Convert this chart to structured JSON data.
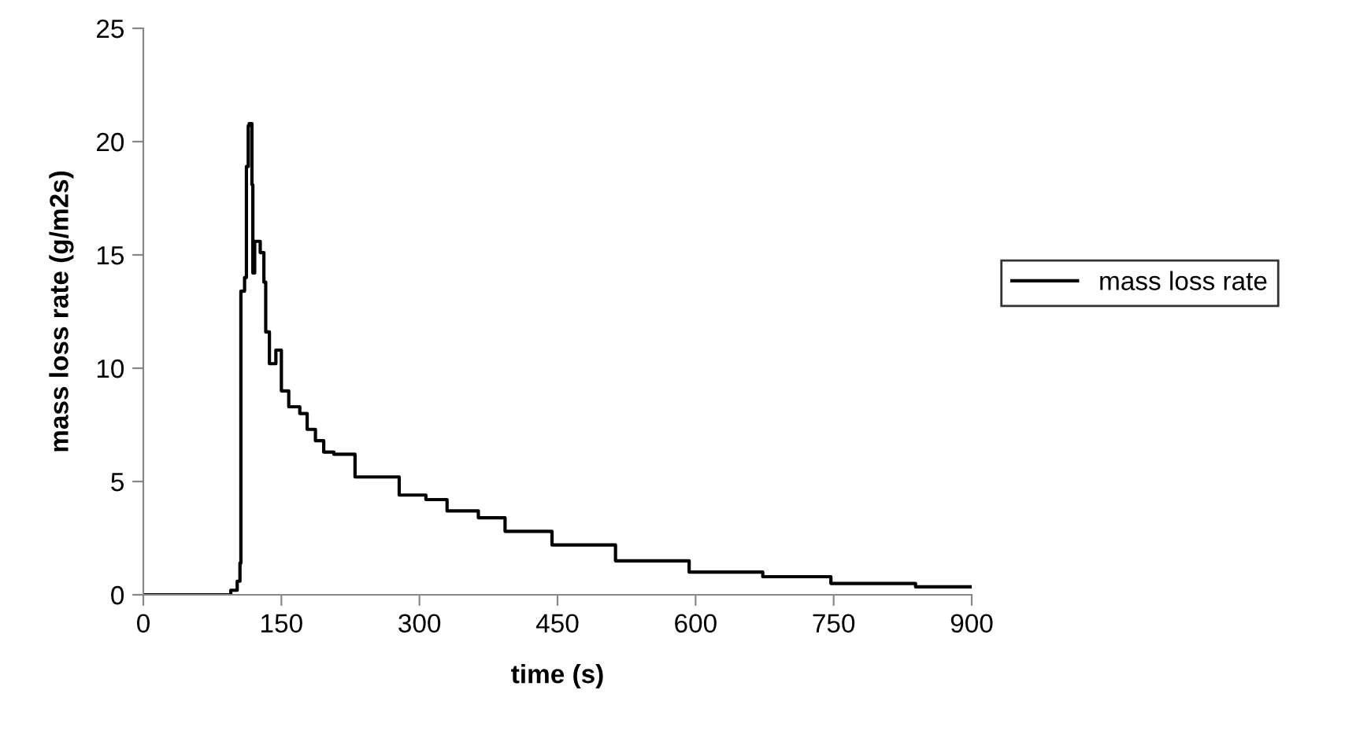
{
  "chart_data": {
    "type": "step",
    "xlabel": "time (s)",
    "ylabel": "mass loss rate (g/m2s)",
    "xlim": [
      0,
      900
    ],
    "xticks": [
      0,
      150,
      300,
      450,
      600,
      750,
      900
    ],
    "ylim": [
      0,
      25
    ],
    "yticks": [
      0,
      5,
      10,
      15,
      20,
      25
    ],
    "grid": false,
    "legend": "right",
    "marker": "none",
    "line_style": "solid",
    "series": [
      {
        "name": "mass loss rate",
        "color": "#000000",
        "x": [
          0,
          81,
          95,
          102,
          105,
          106,
          110,
          112,
          114,
          115,
          118,
          119,
          121,
          127,
          131,
          133,
          137,
          144,
          150,
          158,
          170,
          178,
          187,
          196,
          207,
          230,
          247,
          278,
          307,
          330,
          364,
          393,
          444,
          513,
          593,
          673,
          747,
          839,
          900
        ],
        "values": [
          0,
          0,
          0.2,
          0.6,
          1.4,
          13.4,
          14.0,
          18.9,
          20.7,
          20.8,
          18.1,
          14.2,
          15.6,
          15.1,
          13.8,
          11.6,
          10.2,
          10.8,
          9.0,
          8.3,
          8.0,
          7.3,
          6.8,
          6.3,
          6.2,
          5.2,
          5.2,
          4.4,
          4.2,
          3.7,
          3.4,
          2.8,
          2.2,
          1.5,
          1.0,
          0.8,
          0.5,
          0.35,
          0.35
        ]
      }
    ]
  }
}
